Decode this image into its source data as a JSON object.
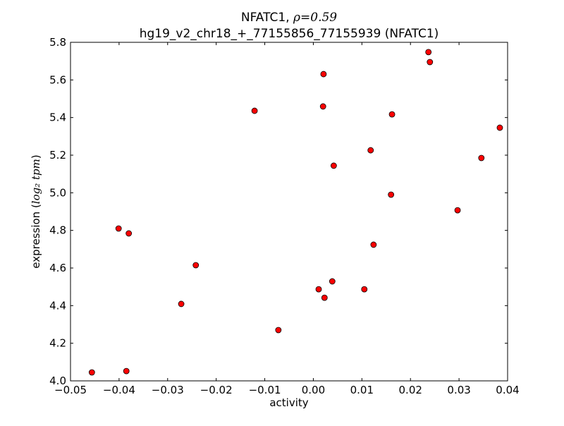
{
  "chart_data": {
    "type": "scatter",
    "title_line1_prefix": "NFATC1, ",
    "title_line1_math": "ρ=0.59",
    "title_line2": "hg19_v2_chr18_+_77155856_77155939 (NFATC1)",
    "xlabel": "activity",
    "ylabel_prefix": "expression (",
    "ylabel_math": "log₂ tpm",
    "ylabel_suffix": ")",
    "xlim": [
      -0.05,
      0.04
    ],
    "ylim": [
      4.0,
      5.8
    ],
    "xticks": [
      -0.05,
      -0.04,
      -0.03,
      -0.02,
      -0.01,
      0.0,
      0.01,
      0.02,
      0.03,
      0.04
    ],
    "xtick_labels": [
      "−0.05",
      "−0.04",
      "−0.03",
      "−0.02",
      "−0.01",
      "0.00",
      "0.01",
      "0.02",
      "0.03",
      "0.04"
    ],
    "yticks": [
      4.0,
      4.2,
      4.4,
      4.6,
      4.8,
      5.0,
      5.2,
      5.4,
      5.6,
      5.8
    ],
    "ytick_labels": [
      "4.0",
      "4.2",
      "4.4",
      "4.6",
      "4.8",
      "5.0",
      "5.2",
      "5.4",
      "5.6",
      "5.8"
    ],
    "marker_color": "#ff0000",
    "points": [
      [
        -0.0456,
        4.045
      ],
      [
        -0.0385,
        4.052
      ],
      [
        -0.0401,
        4.81
      ],
      [
        -0.038,
        4.784
      ],
      [
        -0.0242,
        4.615
      ],
      [
        -0.0272,
        4.409
      ],
      [
        -0.0121,
        5.436
      ],
      [
        -0.0072,
        4.27
      ],
      [
        0.0021,
        5.631
      ],
      [
        0.002,
        5.459
      ],
      [
        0.0011,
        4.487
      ],
      [
        0.0023,
        4.442
      ],
      [
        0.0039,
        4.529
      ],
      [
        0.0042,
        5.144
      ],
      [
        0.0105,
        4.487
      ],
      [
        0.0118,
        5.226
      ],
      [
        0.0124,
        4.724
      ],
      [
        0.016,
        4.99
      ],
      [
        0.0162,
        5.417
      ],
      [
        0.0237,
        5.748
      ],
      [
        0.024,
        5.695
      ],
      [
        0.0297,
        4.907
      ],
      [
        0.0346,
        5.185
      ],
      [
        0.0384,
        5.346
      ]
    ]
  }
}
